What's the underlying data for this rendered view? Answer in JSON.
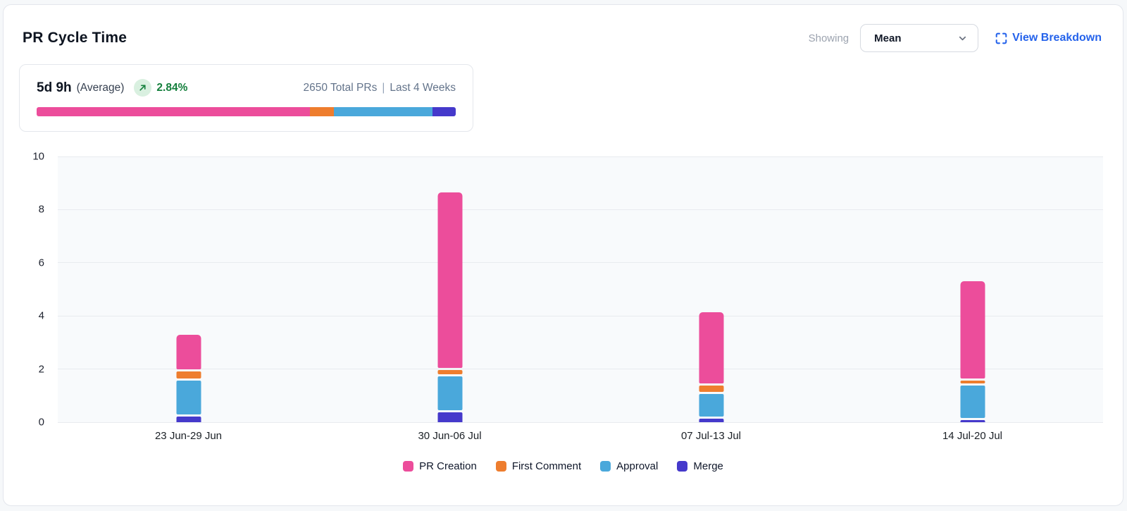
{
  "header": {
    "title": "PR Cycle Time",
    "showing_label": "Showing",
    "metric_select": {
      "value": "Mean"
    },
    "view_breakdown_label": "View Breakdown"
  },
  "summary": {
    "value": "5d 9h",
    "value_suffix": "(Average)",
    "change_pct": "2.84%",
    "total_label": "2650 Total PRs",
    "separator": "|",
    "period_label": "Last 4 Weeks",
    "distribution": [
      {
        "name": "PR Creation",
        "color": "#ec4d9b",
        "pct": 65.2
      },
      {
        "name": "First Comment",
        "color": "#ee7d2e",
        "pct": 5.8
      },
      {
        "name": "Approval",
        "color": "#4aa8db",
        "pct": 23.4
      },
      {
        "name": "Merge",
        "color": "#4539cb",
        "pct": 5.6
      }
    ]
  },
  "colors": {
    "pr_creation": "#ec4d9b",
    "first_comment": "#ee7d2e",
    "approval": "#4aa8db",
    "merge": "#4539cb",
    "trend_green": "#15803d",
    "link_blue": "#2563eb",
    "plot_background": "#f8fafc",
    "gridline": "#e8ebef"
  },
  "chart_data": {
    "type": "bar",
    "stacked": true,
    "title": "PR Cycle Time",
    "categories": [
      "23 Jun-29 Jun",
      "30 Jun-06 Jul",
      "07 Jul-13 Jul",
      "14 Jul-20 Jul"
    ],
    "series": [
      {
        "name": "Merge",
        "color": "#4539cb",
        "values": [
          0.3,
          0.45,
          0.2,
          0.15
        ]
      },
      {
        "name": "Approval",
        "color": "#4aa8db",
        "values": [
          1.35,
          1.35,
          0.95,
          1.3
        ]
      },
      {
        "name": "First Comment",
        "color": "#ee7d2e",
        "values": [
          0.35,
          0.25,
          0.3,
          0.2
        ]
      },
      {
        "name": "PR Creation",
        "color": "#ec4d9b",
        "values": [
          1.3,
          6.6,
          2.7,
          3.65
        ]
      }
    ],
    "stack_totals": [
      3.3,
      8.65,
      4.15,
      5.3
    ],
    "stack_order_bottom_to_top": [
      "Merge",
      "Approval",
      "First Comment",
      "PR Creation"
    ],
    "legend": [
      "PR Creation",
      "First Comment",
      "Approval",
      "Merge"
    ],
    "legend_position": "bottom",
    "y_axis": {
      "min": 0,
      "max": 10,
      "ticks": [
        0,
        2,
        4,
        6,
        8,
        10
      ]
    },
    "xlabel": "",
    "ylabel": "",
    "grid": true
  }
}
